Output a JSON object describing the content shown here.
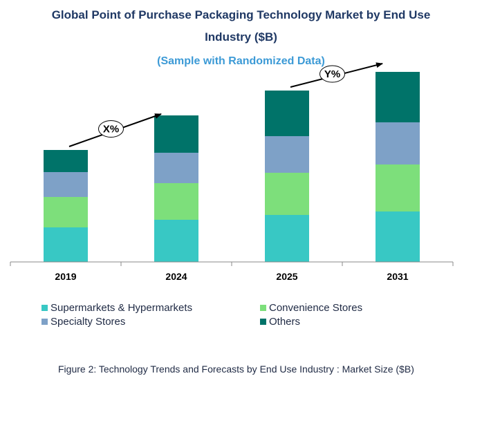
{
  "title_line1": "Global Point of Purchase Packaging Technology Market by End Use",
  "title_line2": "Industry ($B)",
  "subtitle": "(Sample with Randomized Data)",
  "caption": "Figure 2: Technology  Trends  and Forecasts by  End Use Industry   : Market Size ($B)",
  "chart_data": {
    "type": "bar",
    "stacked": true,
    "categories": [
      "2019",
      "2024",
      "2025",
      "2031"
    ],
    "series": [
      {
        "name": "Supermarkets & Hypermarkets",
        "color": "#38c8c4",
        "values": [
          50,
          61,
          68,
          73
        ]
      },
      {
        "name": "Convenience Stores",
        "color": "#7ddf7b",
        "values": [
          44,
          53,
          61,
          68
        ]
      },
      {
        "name": "Specialty Stores",
        "color": "#7ea1c7",
        "values": [
          36,
          44,
          53,
          61
        ]
      },
      {
        "name": "Others",
        "color": "#007369",
        "values": [
          32,
          54,
          66,
          73
        ]
      }
    ],
    "ylim": [
      0,
      275
    ],
    "grid": false,
    "legend_position": "bottom",
    "annotations": [
      {
        "label": "X%",
        "from_category": "2019",
        "to_category": "2024"
      },
      {
        "label": "Y%",
        "from_category": "2025",
        "to_category": "2031"
      }
    ]
  }
}
